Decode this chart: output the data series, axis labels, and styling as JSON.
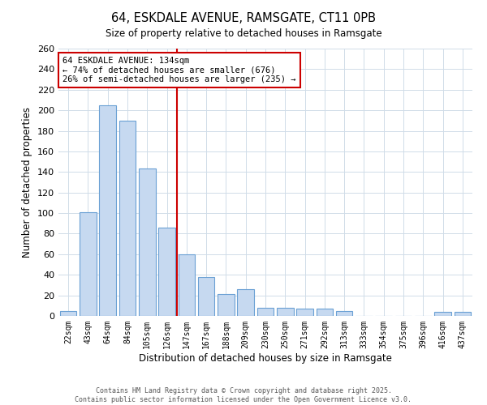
{
  "title": "64, ESKDALE AVENUE, RAMSGATE, CT11 0PB",
  "subtitle": "Size of property relative to detached houses in Ramsgate",
  "bar_labels": [
    "22sqm",
    "43sqm",
    "64sqm",
    "84sqm",
    "105sqm",
    "126sqm",
    "147sqm",
    "167sqm",
    "188sqm",
    "209sqm",
    "230sqm",
    "250sqm",
    "271sqm",
    "292sqm",
    "313sqm",
    "333sqm",
    "354sqm",
    "375sqm",
    "396sqm",
    "416sqm",
    "437sqm"
  ],
  "bar_heights": [
    5,
    101,
    205,
    190,
    143,
    86,
    60,
    38,
    21,
    26,
    8,
    8,
    7,
    7,
    5,
    0,
    0,
    0,
    0,
    4,
    4
  ],
  "bar_color": "#c6d9f0",
  "bar_edge_color": "#6aa0d4",
  "xlabel": "Distribution of detached houses by size in Ramsgate",
  "ylabel": "Number of detached properties",
  "ylim": [
    0,
    260
  ],
  "yticks": [
    0,
    20,
    40,
    60,
    80,
    100,
    120,
    140,
    160,
    180,
    200,
    220,
    240,
    260
  ],
  "vline_x": 5.5,
  "vline_color": "#cc0000",
  "annotation_line1": "64 ESKDALE AVENUE: 134sqm",
  "annotation_line2": "← 74% of detached houses are smaller (676)",
  "annotation_line3": "26% of semi-detached houses are larger (235) →",
  "annotation_box_color": "#ffffff",
  "annotation_border_color": "#cc0000",
  "footer_line1": "Contains HM Land Registry data © Crown copyright and database right 2025.",
  "footer_line2": "Contains public sector information licensed under the Open Government Licence v3.0.",
  "background_color": "#ffffff",
  "grid_color": "#d0dce8"
}
